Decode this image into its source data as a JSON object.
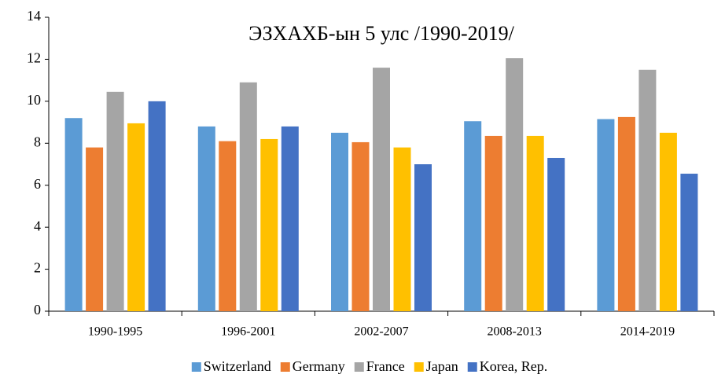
{
  "chart_data": {
    "type": "bar",
    "title": "ЭЗХАХБ-ын 5 улс /1990-2019/",
    "categories": [
      "1990-1995",
      "1996-2001",
      "2002-2007",
      "2008-2013",
      "2014-2019"
    ],
    "series": [
      {
        "name": "Switzerland",
        "color": "#5b9bd5",
        "values": [
          9.2,
          8.8,
          8.5,
          9.05,
          9.15
        ]
      },
      {
        "name": "Germany",
        "color": "#ed7d31",
        "values": [
          7.8,
          8.1,
          8.05,
          8.35,
          9.25
        ]
      },
      {
        "name": "France",
        "color": "#a5a5a5",
        "values": [
          10.45,
          10.9,
          11.6,
          12.05,
          11.5
        ]
      },
      {
        "name": "Japan",
        "color": "#ffc000",
        "values": [
          8.95,
          8.2,
          7.8,
          8.35,
          8.5
        ]
      },
      {
        "name": "Korea, Rep.",
        "color": "#4472c4",
        "values": [
          10.0,
          8.8,
          7.0,
          7.3,
          6.55
        ]
      }
    ],
    "ylim": [
      0,
      14
    ],
    "yticks": [
      0,
      2,
      4,
      6,
      8,
      10,
      12,
      14
    ],
    "legend": "bottom"
  }
}
